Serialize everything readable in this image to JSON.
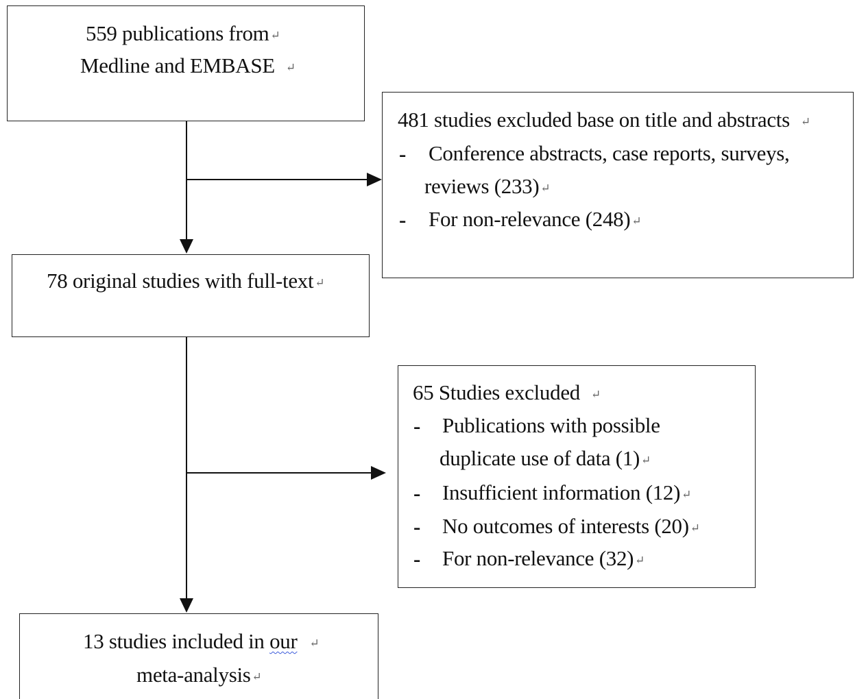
{
  "boxes": {
    "identified": {
      "line1": "559 publications from",
      "line2": "Medline and EMBASE"
    },
    "excluded_title": {
      "heading": "481 studies excluded base on title and abstracts",
      "item1_line1": "Conference abstracts, case reports, surveys,",
      "item1_line2": "reviews (233)",
      "item2": "For non-relevance (248)"
    },
    "fulltext": {
      "line1": "78 original studies with full-text"
    },
    "excluded_fulltext": {
      "heading": "65 Studies excluded",
      "item1_line1": "Publications with possible",
      "item1_line2": "duplicate use of data (1)",
      "item2": "Insufficient information (12)",
      "item3": "No outcomes of interests (20)",
      "item4": "For non-relevance (32)"
    },
    "included": {
      "line1_pre": "13 studies included in ",
      "line1_word": "our",
      "line2": "meta-analysis"
    }
  },
  "markers": {
    "bullet": "-",
    "return_mark": "↵"
  },
  "colors": {
    "stroke": "#222222",
    "text": "#111111",
    "spellcheck": "#3b5bdb"
  }
}
